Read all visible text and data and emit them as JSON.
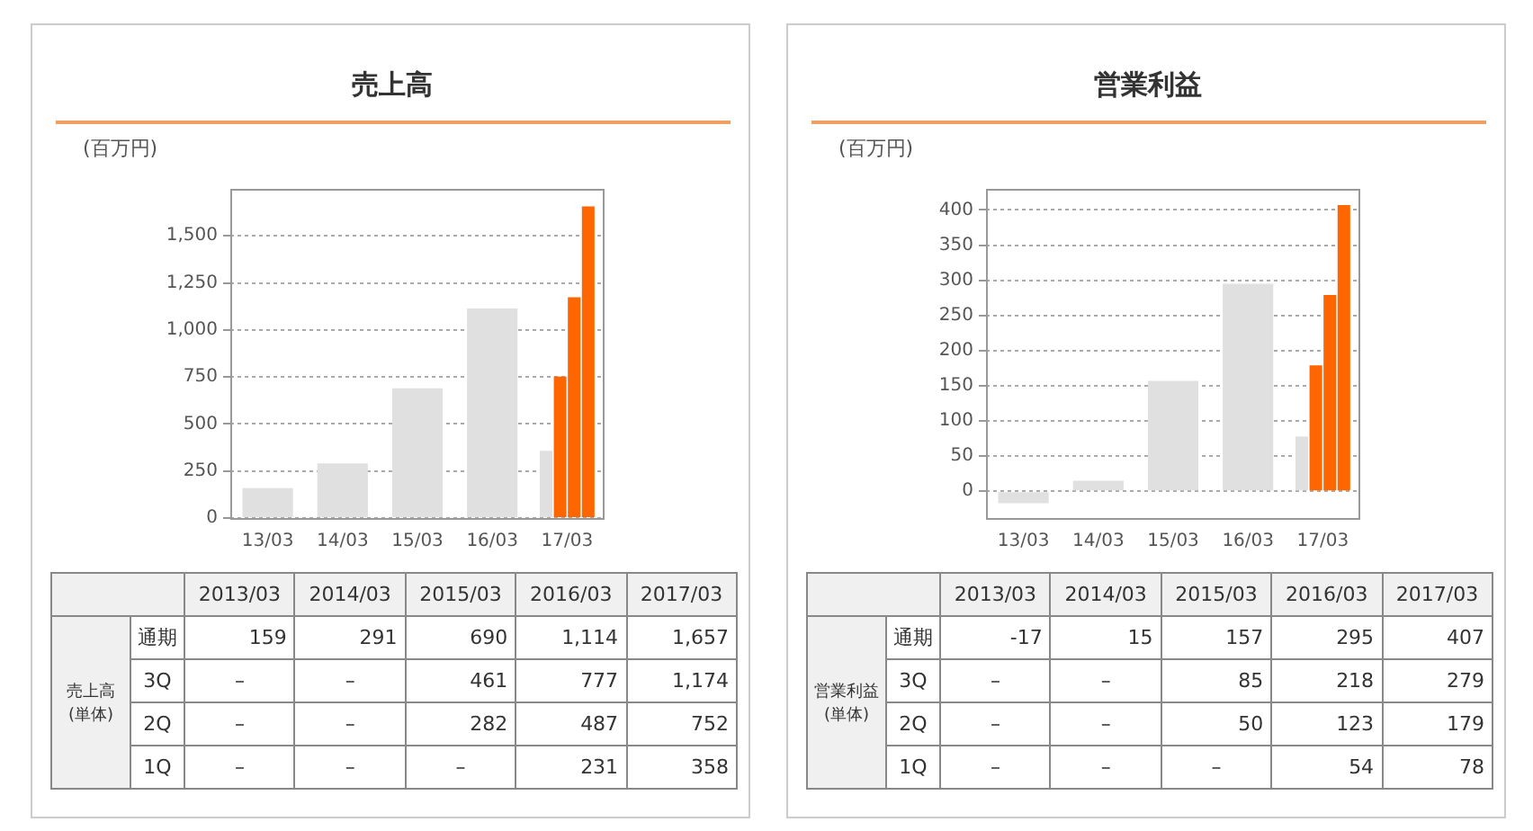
{
  "chart_data": [
    {
      "type": "bar",
      "title": "売上高",
      "ylabel": "(百万円)",
      "categories": [
        "13/03",
        "14/03",
        "15/03",
        "16/03",
        "17/03"
      ],
      "ylim": [
        0,
        1750
      ],
      "yticks": [
        0,
        250,
        500,
        750,
        {
          "value": 1000,
          "label": "1,000"
        },
        {
          "value": 1250,
          "label": "1,250"
        },
        {
          "value": 1500,
          "label": "1,500"
        }
      ],
      "grid": "y",
      "series": [
        {
          "color": "#e0e0e0",
          "values": [
            null,
            null,
            null,
            null,
            358
          ]
        },
        {
          "color": "#ff6600",
          "values": [
            null,
            null,
            null,
            null,
            752
          ]
        },
        {
          "color": "#ff6600",
          "values": [
            null,
            null,
            null,
            null,
            1174
          ]
        },
        {
          "colors": [
            "#e0e0e0",
            "#e0e0e0",
            "#e0e0e0",
            "#e0e0e0",
            "#ff6600"
          ],
          "values": [
            159,
            291,
            690,
            1114,
            1657
          ]
        }
      ]
    },
    {
      "type": "other",
      "ylabel": "売上高\n(単体)",
      "categories": [
        "2013/03",
        "2014/03",
        "2015/03",
        "2016/03",
        "2017/03"
      ],
      "y_categories": [
        "通期",
        "3Q",
        "2Q",
        "1Q"
      ],
      "cell_labels": [
        [
          "159",
          "291",
          "690",
          "1,114",
          "1,657"
        ],
        [
          "–",
          "–",
          "461",
          "777",
          "1,174"
        ],
        [
          "–",
          "–",
          "282",
          "487",
          "752"
        ],
        [
          "–",
          "–",
          "–",
          "231",
          "358"
        ]
      ]
    },
    {
      "type": "bar",
      "title": "営業利益",
      "ylabel": "(百万円)",
      "categories": [
        "13/03",
        "14/03",
        "15/03",
        "16/03",
        "17/03"
      ],
      "ylim": [
        -38,
        430
      ],
      "yticks": [
        0,
        50,
        100,
        150,
        200,
        250,
        300,
        350,
        400
      ],
      "grid": "y",
      "series": [
        {
          "color": "#e0e0e0",
          "values": [
            null,
            null,
            null,
            null,
            78
          ]
        },
        {
          "color": "#ff6600",
          "values": [
            null,
            null,
            null,
            null,
            179
          ]
        },
        {
          "color": "#ff6600",
          "values": [
            null,
            null,
            null,
            null,
            279
          ]
        },
        {
          "colors": [
            "#e0e0e0",
            "#e0e0e0",
            "#e0e0e0",
            "#e0e0e0",
            "#ff6600"
          ],
          "values": [
            -17,
            15,
            157,
            295,
            407
          ]
        }
      ]
    },
    {
      "type": "other",
      "ylabel": "営業利益\n(単体)",
      "categories": [
        "2013/03",
        "2014/03",
        "2015/03",
        "2016/03",
        "2017/03"
      ],
      "y_categories": [
        "通期",
        "3Q",
        "2Q",
        "1Q"
      ],
      "cell_labels": [
        [
          "-17",
          "15",
          "157",
          "295",
          "407"
        ],
        [
          "–",
          "–",
          "85",
          "218",
          "279"
        ],
        [
          "–",
          "–",
          "50",
          "123",
          "179"
        ],
        [
          "–",
          "–",
          "–",
          "54",
          "78"
        ]
      ]
    }
  ]
}
